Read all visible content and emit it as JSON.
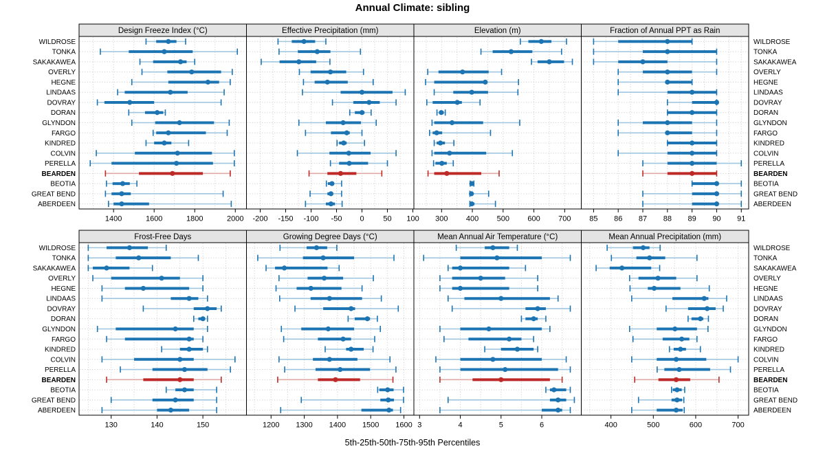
{
  "title": "Annual Climate: sibling",
  "caption": "5th-25th-50th-75th-95th Percentiles",
  "highlight_station": "BEARDEN",
  "colors": {
    "series": "#1c74b2",
    "series_light": "#a0c6e0",
    "highlight": "#be2a27",
    "highlight_light": "#e2a8a3",
    "grid": "#c9c9c9",
    "panel_bg": "#ffffff",
    "header_bg": "#e4e4e4",
    "border": "#000000",
    "text": "#000000"
  },
  "chart_data": {
    "type": "dotplot",
    "orientation": "horizontal",
    "percentiles": [
      5,
      25,
      50,
      75,
      95
    ],
    "legend_position": "none",
    "grid": "dotted",
    "stations": [
      "WILDROSE",
      "TONKA",
      "SAKAKAWEA",
      "OVERLY",
      "HEGNE",
      "LINDAAS",
      "DOVRAY",
      "DORAN",
      "GLYNDON",
      "FARGO",
      "KINDRED",
      "COLVIN",
      "PERELLA",
      "BEARDEN",
      "BEOTIA",
      "GREAT BEND",
      "ABERDEEN"
    ],
    "panels": [
      {
        "title": "Design Freeze Index (°C)",
        "xlim": [
          1230,
          2055
        ],
        "ticks": [
          1400,
          1600,
          1800,
          2000
        ],
        "grid_step": 100,
        "values": [
          [
            1560,
            1610,
            1670,
            1710,
            1755
          ],
          [
            1335,
            1475,
            1650,
            1790,
            2010
          ],
          [
            1530,
            1595,
            1730,
            1760,
            1800
          ],
          [
            1540,
            1665,
            1785,
            1930,
            1985
          ],
          [
            1490,
            1670,
            1865,
            1920,
            1975
          ],
          [
            1420,
            1455,
            1680,
            1765,
            1945
          ],
          [
            1320,
            1355,
            1480,
            1600,
            1930
          ],
          [
            1475,
            1555,
            1615,
            1645,
            1655
          ],
          [
            1490,
            1605,
            1725,
            1895,
            1970
          ],
          [
            1595,
            1610,
            1670,
            1855,
            1960
          ],
          [
            1560,
            1600,
            1650,
            1685,
            1770
          ],
          [
            1315,
            1505,
            1715,
            1885,
            1995
          ],
          [
            1285,
            1390,
            1710,
            1890,
            1995
          ],
          [
            1360,
            1525,
            1690,
            1840,
            1975
          ],
          [
            1365,
            1395,
            1445,
            1480,
            1515
          ],
          [
            1360,
            1390,
            1440,
            1485,
            1940
          ],
          [
            1375,
            1400,
            1440,
            1575,
            1980
          ]
        ]
      },
      {
        "title": "Effective Precipitation (mm)",
        "xlim": [
          -227,
          102
        ],
        "ticks": [
          -200,
          -150,
          -100,
          -50,
          0,
          50,
          100
        ],
        "grid_step": 25,
        "values": [
          [
            -165,
            -138,
            -114,
            -92,
            -71
          ],
          [
            -163,
            -126,
            -88,
            -62,
            -3
          ],
          [
            -198,
            -162,
            -124,
            -90,
            -63
          ],
          [
            -123,
            -101,
            -62,
            -31,
            3
          ],
          [
            -115,
            -93,
            -68,
            -28,
            22
          ],
          [
            -117,
            -42,
            0,
            60,
            85
          ],
          [
            -58,
            -17,
            14,
            35,
            67
          ],
          [
            -24,
            -14,
            0,
            5,
            18
          ],
          [
            -124,
            -71,
            -37,
            -2,
            28
          ],
          [
            -111,
            -61,
            -30,
            -24,
            0
          ],
          [
            -49,
            -45,
            -36,
            -30,
            5
          ],
          [
            -127,
            -64,
            -26,
            17,
            67
          ],
          [
            -62,
            -45,
            -25,
            12,
            50
          ],
          [
            -104,
            -68,
            -42,
            -11,
            39
          ],
          [
            -70,
            -67,
            -59,
            -55,
            -40
          ],
          [
            -102,
            -68,
            -61,
            -57,
            -40
          ],
          [
            -111,
            -71,
            -61,
            -53,
            -39
          ]
        ]
      },
      {
        "title": "Elevation (m)",
        "xlim": [
          210,
          754
        ],
        "ticks": [
          300,
          400,
          500,
          600,
          700
        ],
        "grid_step": 50,
        "values": [
          [
            556,
            582,
            624,
            657,
            706
          ],
          [
            428,
            466,
            526,
            595,
            690
          ],
          [
            592,
            612,
            650,
            698,
            725
          ],
          [
            255,
            290,
            368,
            453,
            495
          ],
          [
            248,
            276,
            442,
            448,
            550
          ],
          [
            276,
            338,
            398,
            451,
            548
          ],
          [
            252,
            271,
            351,
            366,
            425
          ],
          [
            285,
            292,
            299,
            307,
            312
          ],
          [
            269,
            276,
            334,
            435,
            554
          ],
          [
            261,
            271,
            284,
            302,
            459
          ],
          [
            276,
            284,
            296,
            311,
            340
          ],
          [
            269,
            276,
            326,
            445,
            530
          ],
          [
            274,
            280,
            301,
            317,
            338
          ],
          [
            256,
            276,
            317,
            429,
            487
          ],
          [
            393,
            395,
            398,
            402,
            405
          ],
          [
            392,
            394,
            397,
            401,
            453
          ],
          [
            392,
            394,
            398,
            407,
            475
          ]
        ]
      },
      {
        "title": "Fraction of Annual PPT as Rain",
        "xlim": [
          84.5,
          91.3
        ],
        "ticks": [
          85,
          86,
          87,
          88,
          89,
          90,
          91
        ],
        "grid_step": 0.5,
        "values": [
          [
            85,
            86,
            88,
            89,
            89
          ],
          [
            85,
            87,
            88,
            90,
            90
          ],
          [
            85,
            86,
            87,
            88,
            90
          ],
          [
            86,
            87,
            88,
            89,
            90
          ],
          [
            86,
            88,
            88,
            89,
            89
          ],
          [
            86,
            88,
            89,
            90,
            90
          ],
          [
            88,
            89,
            90,
            90,
            90
          ],
          [
            88,
            88,
            89,
            90,
            90
          ],
          [
            86,
            87,
            88,
            89,
            90
          ],
          [
            86,
            88,
            88,
            89,
            90
          ],
          [
            88,
            88,
            89,
            90,
            90
          ],
          [
            86,
            88,
            89,
            90,
            90
          ],
          [
            87,
            88,
            89,
            90,
            91
          ],
          [
            87,
            88,
            89,
            90,
            90
          ],
          [
            89,
            89,
            90,
            90,
            91
          ],
          [
            87,
            89,
            90,
            90,
            91
          ],
          [
            87,
            89,
            90,
            90,
            91
          ]
        ]
      },
      {
        "title": "Frost-Free Days",
        "xlim": [
          123,
          159.5
        ],
        "ticks": [
          130,
          140,
          150
        ],
        "grid_step": 5,
        "values": [
          [
            125,
            129,
            134,
            138,
            142
          ],
          [
            125,
            131,
            136,
            143,
            149
          ],
          [
            125,
            126,
            129,
            134,
            139
          ],
          [
            126,
            130,
            141,
            145,
            150
          ],
          [
            128,
            133,
            137,
            147,
            150
          ],
          [
            128,
            143,
            147,
            149,
            151
          ],
          [
            137,
            148,
            151,
            153,
            154
          ],
          [
            148,
            149,
            150,
            150.5,
            151
          ],
          [
            127,
            131,
            144,
            148,
            151
          ],
          [
            129,
            133,
            147,
            148,
            150
          ],
          [
            141,
            145,
            147,
            150,
            151
          ],
          [
            128,
            135,
            145,
            148,
            157
          ],
          [
            132,
            139,
            146,
            151,
            156
          ],
          [
            129,
            137,
            145,
            148,
            154
          ],
          [
            142,
            144,
            146,
            148,
            153
          ],
          [
            130,
            139,
            144,
            148,
            153
          ],
          [
            128,
            140,
            143,
            147,
            153
          ]
        ]
      },
      {
        "title": "Growing Degree Days (°C)",
        "xlim": [
          1126,
          1630
        ],
        "ticks": [
          1200,
          1300,
          1400,
          1500,
          1600
        ],
        "grid_step": 50,
        "values": [
          [
            1227,
            1307,
            1337,
            1369,
            1398
          ],
          [
            1160,
            1296,
            1357,
            1450,
            1570
          ],
          [
            1185,
            1212,
            1240,
            1370,
            1405
          ],
          [
            1224,
            1310,
            1360,
            1417,
            1508
          ],
          [
            1215,
            1277,
            1320,
            1412,
            1474
          ],
          [
            1226,
            1319,
            1376,
            1474,
            1532
          ],
          [
            1272,
            1357,
            1441,
            1453,
            1583
          ],
          [
            1432,
            1452,
            1490,
            1498,
            1520
          ],
          [
            1231,
            1291,
            1372,
            1450,
            1529
          ],
          [
            1238,
            1341,
            1417,
            1441,
            1512
          ],
          [
            1363,
            1426,
            1441,
            1479,
            1507
          ],
          [
            1224,
            1326,
            1376,
            1460,
            1558
          ],
          [
            1241,
            1334,
            1408,
            1498,
            1576
          ],
          [
            1220,
            1341,
            1394,
            1468,
            1567
          ],
          [
            1521,
            1526,
            1551,
            1569,
            1599
          ],
          [
            1291,
            1529,
            1553,
            1570,
            1599
          ],
          [
            1229,
            1472,
            1555,
            1567,
            1590
          ]
        ]
      },
      {
        "title": "Mean Annual Air Temperature (°C)",
        "xlim": [
          2.86,
          6.97
        ],
        "ticks": [
          3,
          4,
          5,
          6
        ],
        "grid_step": 0.5,
        "values": [
          [
            3.9,
            4.6,
            4.8,
            5.2,
            5.4
          ],
          [
            3.1,
            4.0,
            4.9,
            6.0,
            6.7
          ],
          [
            3.7,
            3.8,
            4.0,
            5.2,
            5.6
          ],
          [
            3.5,
            3.8,
            4.5,
            5.1,
            5.9
          ],
          [
            3.5,
            3.8,
            4.0,
            5.2,
            5.9
          ],
          [
            3.7,
            4.1,
            5.0,
            6.2,
            6.4
          ],
          [
            3.8,
            5.6,
            5.9,
            6.1,
            6.7
          ],
          [
            5.5,
            5.6,
            5.8,
            5.9,
            6.1
          ],
          [
            3.5,
            4.0,
            4.7,
            6.0,
            6.2
          ],
          [
            3.6,
            4.2,
            5.2,
            5.5,
            5.8
          ],
          [
            4.6,
            5.0,
            5.4,
            5.8,
            5.9
          ],
          [
            3.4,
            4.0,
            4.8,
            6.0,
            6.6
          ],
          [
            3.5,
            4.0,
            5.1,
            6.4,
            6.7
          ],
          [
            3.5,
            4.3,
            5.0,
            6.2,
            6.5
          ],
          [
            6.1,
            6.2,
            6.3,
            6.6,
            6.7
          ],
          [
            3.7,
            6.2,
            6.4,
            6.6,
            6.8
          ],
          [
            3.5,
            6.0,
            6.4,
            6.5,
            6.7
          ]
        ]
      },
      {
        "title": "Mean Annual Precipitation (mm)",
        "xlim": [
          330,
          725
        ],
        "ticks": [
          400,
          500,
          600,
          700
        ],
        "grid_step": 50,
        "values": [
          [
            391,
            452,
            476,
            491,
            516
          ],
          [
            401,
            460,
            491,
            528,
            603
          ],
          [
            365,
            397,
            426,
            495,
            515
          ],
          [
            444,
            465,
            511,
            554,
            603
          ],
          [
            445,
            487,
            502,
            564,
            632
          ],
          [
            449,
            545,
            620,
            630,
            673
          ],
          [
            530,
            582,
            627,
            647,
            665
          ],
          [
            582,
            590,
            611,
            618,
            630
          ],
          [
            444,
            508,
            551,
            603,
            629
          ],
          [
            452,
            522,
            567,
            585,
            603
          ],
          [
            538,
            548,
            564,
            577,
            611
          ],
          [
            449,
            508,
            554,
            625,
            700
          ],
          [
            509,
            526,
            561,
            634,
            682
          ],
          [
            456,
            512,
            554,
            587,
            655
          ],
          [
            543,
            546,
            556,
            567,
            574
          ],
          [
            465,
            543,
            556,
            568,
            572
          ],
          [
            449,
            508,
            554,
            569,
            573
          ]
        ]
      }
    ]
  }
}
